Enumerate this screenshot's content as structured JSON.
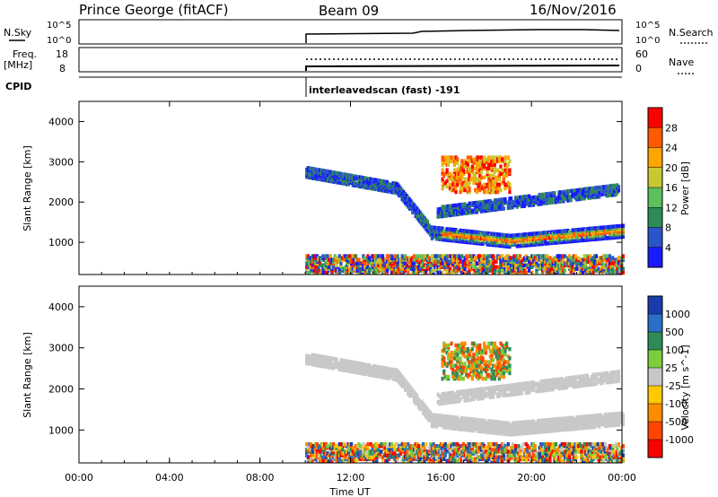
{
  "header": {
    "title": "Prince George (fitACF)",
    "beam": "Beam 09",
    "date": "16/Nov/2016"
  },
  "top_panels": {
    "nsky_label": "N.Sky",
    "nsky_ticks": [
      "10^5",
      "10^0"
    ],
    "nsearch_label": "N.Search",
    "nsearch_ticks": [
      "10^5",
      "10^0"
    ],
    "freq_label": "Freq.",
    "freq_unit": "[MHz]",
    "freq_ticks": [
      "18",
      "8"
    ],
    "nave_label": "Nave",
    "nave_ticks": [
      "60",
      "0"
    ],
    "cpid_label": "CPID",
    "cpid_value": "interleavedscan (fast) -191"
  },
  "chart_data": [
    {
      "type": "heatmap",
      "panel": "power",
      "ylabel": "Slant Range [km]",
      "yticks": [
        "1000",
        "2000",
        "3000",
        "4000"
      ],
      "ylim": [
        200,
        4500
      ],
      "xlim_hours": [
        0,
        24
      ],
      "data_start_hour": 10,
      "colorbar": {
        "label": "Power [dB]",
        "ticks": [
          "4",
          "8",
          "12",
          "16",
          "20",
          "24",
          "28"
        ],
        "colors": [
          "#1a1aff",
          "#2a55c8",
          "#2e8b57",
          "#5cc05c",
          "#c8c832",
          "#ffa500",
          "#ff5a00",
          "#ff0000"
        ]
      }
    },
    {
      "type": "heatmap",
      "panel": "velocity",
      "ylabel": "Slant Range [km]",
      "yticks": [
        "1000",
        "2000",
        "3000",
        "4000"
      ],
      "ylim": [
        200,
        4500
      ],
      "xlim_hours": [
        0,
        24
      ],
      "data_start_hour": 10,
      "colorbar": {
        "label": "Velocity [m s^-1]",
        "ticks": [
          "1000",
          "500",
          "100",
          "25",
          "-25",
          "-100",
          "-500",
          "-1000"
        ],
        "colors": [
          "#1a3caa",
          "#2a6ec8",
          "#2e8b57",
          "#7ccd3c",
          "#c8c8c8",
          "#ffc800",
          "#ff8c00",
          "#ff4500",
          "#ff0000"
        ]
      }
    }
  ],
  "xaxis": {
    "label": "Time UT",
    "ticks": [
      "00:00",
      "04:00",
      "08:00",
      "12:00",
      "16:00",
      "20:00",
      "00:00"
    ]
  }
}
